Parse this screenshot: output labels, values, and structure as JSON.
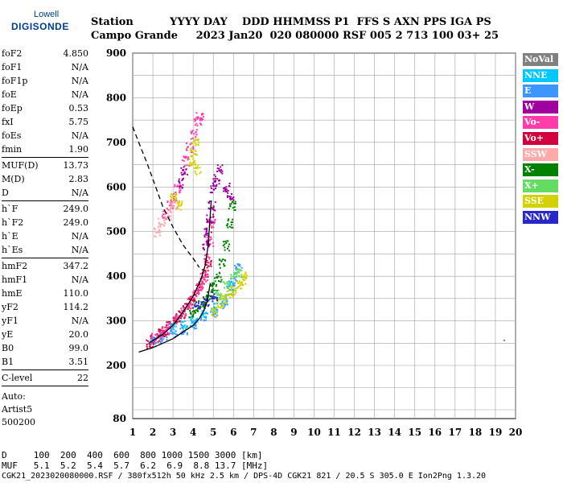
{
  "logo": {
    "line1": "Lowell",
    "line2": "DIGISONDE"
  },
  "header": {
    "labels": "Station          YYYY DAY    DDD HHMMSS P1  FFS S AXN PPS IGA PS",
    "values": "Campo Grande     2023 Jan20  020 080000 RSF 005 2 713 100 03+ 25"
  },
  "params": [
    {
      "key": "foF2",
      "value": "4.850"
    },
    {
      "key": "foF1",
      "value": "N/A"
    },
    {
      "key": "foF1p",
      "value": "N/A"
    },
    {
      "key": "foE",
      "value": "N/A"
    },
    {
      "key": "foEp",
      "value": "0.53"
    },
    {
      "key": "fxI",
      "value": "5.75"
    },
    {
      "key": "foEs",
      "value": "N/A"
    },
    {
      "key": "fmin",
      "value": "1.90"
    },
    {
      "key": "MUF(D)",
      "value": "13.73"
    },
    {
      "key": "M(D)",
      "value": "2.83"
    },
    {
      "key": "D",
      "value": "N/A"
    },
    {
      "key": "h`F",
      "value": "249.0"
    },
    {
      "key": "h`F2",
      "value": "249.0"
    },
    {
      "key": "h`E",
      "value": "N/A"
    },
    {
      "key": "h`Es",
      "value": "N/A"
    },
    {
      "key": "hmF2",
      "value": "347.2"
    },
    {
      "key": "hmF1",
      "value": "N/A"
    },
    {
      "key": "hmE",
      "value": "110.0"
    },
    {
      "key": "yF2",
      "value": "114.2"
    },
    {
      "key": "yF1",
      "value": "N/A"
    },
    {
      "key": "yE",
      "value": "20.0"
    },
    {
      "key": "B0",
      "value": "99.0"
    },
    {
      "key": "B1",
      "value": "3.51"
    },
    {
      "key": "C-level",
      "value": "22"
    }
  ],
  "auto": {
    "line1": "Auto:",
    "line2": "Artist5",
    "line3": "500200"
  },
  "legend": [
    {
      "label": "NoVal",
      "color": "#808080"
    },
    {
      "label": "NNE",
      "color": "#00c8ff"
    },
    {
      "label": "E",
      "color": "#3c96ff"
    },
    {
      "label": "W",
      "color": "#a000a0"
    },
    {
      "label": "Vo-",
      "color": "#ff3caa"
    },
    {
      "label": "Vo+",
      "color": "#d2003c"
    },
    {
      "label": "SSW",
      "color": "#ffaaaa"
    },
    {
      "label": "X-",
      "color": "#008000"
    },
    {
      "label": "X+",
      "color": "#64dc64"
    },
    {
      "label": "SSE",
      "color": "#d2d200"
    },
    {
      "label": "NNW",
      "color": "#2828c8"
    }
  ],
  "bottom": {
    "d_line": "D     100  200  400  600  800 1000 1500 3000 [km]",
    "muf_line": "MUF   5.1  5.2  5.4  5.7  6.2  6.9  8.8 13.7 [MHz]",
    "footer": "CGK21_2023020080000.RSF / 380fx512h 50 kHz 2.5 km / DPS-4D CGK21 821 / 20.5 S 305.0 E Ion2Png 1.3.20"
  },
  "chart_data": {
    "type": "scatter",
    "xlim": [
      1,
      20
    ],
    "ylim": [
      80,
      900
    ],
    "x_ticks": [
      1,
      2,
      3,
      4,
      5,
      6,
      7,
      8,
      9,
      10,
      11,
      12,
      13,
      14,
      15,
      16,
      17,
      18,
      19,
      20
    ],
    "y_ticks": [
      80,
      200,
      300,
      400,
      500,
      600,
      700,
      800,
      900
    ],
    "grid": true,
    "legend_position": "right",
    "series": [
      {
        "color": "#d2003c",
        "points": [
          [
            1.8,
            250
          ],
          [
            2.0,
            258
          ],
          [
            2.2,
            265
          ],
          [
            2.4,
            272
          ],
          [
            2.6,
            280
          ],
          [
            2.8,
            290
          ],
          [
            3.0,
            298
          ],
          [
            3.2,
            308
          ],
          [
            3.4,
            318
          ],
          [
            3.6,
            330
          ],
          [
            3.8,
            342
          ],
          [
            4.0,
            356
          ],
          [
            4.2,
            372
          ],
          [
            4.4,
            390
          ],
          [
            4.6,
            410
          ],
          [
            4.7,
            430
          ]
        ]
      },
      {
        "color": "#ff3caa",
        "points": [
          [
            2.0,
            262
          ],
          [
            2.3,
            270
          ],
          [
            2.6,
            282
          ],
          [
            2.9,
            295
          ],
          [
            3.2,
            305
          ],
          [
            3.5,
            322
          ],
          [
            3.8,
            340
          ],
          [
            4.1,
            360
          ],
          [
            4.3,
            378
          ],
          [
            4.5,
            400
          ],
          [
            4.7,
            440
          ],
          [
            4.8,
            480
          ],
          [
            4.9,
            520
          ],
          [
            3.6,
            660
          ],
          [
            3.8,
            690
          ],
          [
            4.0,
            720
          ],
          [
            4.2,
            750
          ],
          [
            4.3,
            760
          ],
          [
            2.6,
            540
          ],
          [
            2.8,
            560
          ],
          [
            3.0,
            580
          ],
          [
            3.2,
            600
          ]
        ]
      },
      {
        "color": "#a000a0",
        "points": [
          [
            4.6,
            470
          ],
          [
            4.7,
            500
          ],
          [
            4.8,
            530
          ],
          [
            4.9,
            560
          ],
          [
            5.0,
            600
          ],
          [
            5.1,
            620
          ],
          [
            5.3,
            640
          ],
          [
            5.6,
            600
          ],
          [
            5.8,
            580
          ],
          [
            3.4,
            610
          ],
          [
            3.5,
            640
          ]
        ]
      },
      {
        "color": "#008000",
        "points": [
          [
            4.4,
            340
          ],
          [
            4.6,
            350
          ],
          [
            4.8,
            360
          ],
          [
            5.0,
            380
          ],
          [
            5.2,
            400
          ],
          [
            5.4,
            430
          ],
          [
            5.6,
            470
          ],
          [
            5.8,
            520
          ],
          [
            5.9,
            560
          ],
          [
            3.9,
            320
          ],
          [
            4.2,
            330
          ]
        ]
      },
      {
        "color": "#3c96ff",
        "points": [
          [
            2.0,
            255
          ],
          [
            2.5,
            262
          ],
          [
            3.0,
            275
          ],
          [
            3.5,
            282
          ],
          [
            4.0,
            295
          ],
          [
            4.5,
            310
          ],
          [
            5.0,
            320
          ],
          [
            5.5,
            340
          ],
          [
            5.8,
            370
          ],
          [
            6.0,
            390
          ],
          [
            6.2,
            420
          ]
        ]
      },
      {
        "color": "#00c8ff",
        "points": [
          [
            3.0,
            285
          ],
          [
            3.5,
            290
          ],
          [
            4.0,
            300
          ],
          [
            4.5,
            315
          ],
          [
            5.0,
            330
          ],
          [
            5.5,
            350
          ],
          [
            5.8,
            380
          ]
        ]
      },
      {
        "color": "#d2d200",
        "points": [
          [
            5.0,
            320
          ],
          [
            5.3,
            340
          ],
          [
            5.5,
            350
          ],
          [
            5.8,
            360
          ],
          [
            6.0,
            370
          ],
          [
            6.2,
            380
          ],
          [
            6.4,
            390
          ],
          [
            6.5,
            400
          ],
          [
            4.0,
            680
          ],
          [
            4.1,
            700
          ],
          [
            4.2,
            640
          ],
          [
            3.9,
            660
          ],
          [
            3.0,
            580
          ],
          [
            3.3,
            560
          ]
        ]
      },
      {
        "color": "#64dc64",
        "points": [
          [
            5.2,
            360
          ],
          [
            5.6,
            380
          ],
          [
            6.0,
            400
          ],
          [
            6.3,
            410
          ]
        ]
      },
      {
        "color": "#2828c8",
        "points": [
          [
            4.2,
            335
          ],
          [
            4.6,
            345
          ],
          [
            5.0,
            355
          ]
        ]
      },
      {
        "color": "#ffaaaa",
        "points": [
          [
            2.2,
            500
          ],
          [
            2.4,
            520
          ],
          [
            2.7,
            540
          ],
          [
            3.0,
            560
          ]
        ]
      },
      {
        "color": "#808080",
        "points": [
          [
            19.4,
            258
          ]
        ]
      }
    ],
    "curves": [
      {
        "style": "solid",
        "color": "#000000",
        "points": [
          [
            1.3,
            230
          ],
          [
            2,
            240
          ],
          [
            2.5,
            250
          ],
          [
            3,
            260
          ],
          [
            3.5,
            275
          ],
          [
            4,
            290
          ],
          [
            4.3,
            305
          ],
          [
            4.5,
            320
          ],
          [
            4.7,
            345
          ],
          [
            4.85,
            385
          ]
        ]
      },
      {
        "style": "solid",
        "color": "#000000",
        "points": [
          [
            1.8,
            250
          ],
          [
            2.5,
            270
          ],
          [
            3,
            290
          ],
          [
            3.5,
            320
          ],
          [
            4,
            355
          ],
          [
            4.4,
            395
          ],
          [
            4.6,
            425
          ],
          [
            4.75,
            470
          ],
          [
            4.85,
            540
          ],
          [
            4.9,
            570
          ]
        ]
      },
      {
        "style": "dashed",
        "color": "#000000",
        "points": [
          [
            1,
            735
          ],
          [
            1.3,
            700
          ],
          [
            1.7,
            655
          ],
          [
            2.1,
            605
          ],
          [
            2.5,
            555
          ],
          [
            3,
            510
          ],
          [
            3.5,
            470
          ],
          [
            4,
            440
          ],
          [
            4.3,
            420
          ]
        ]
      }
    ]
  }
}
